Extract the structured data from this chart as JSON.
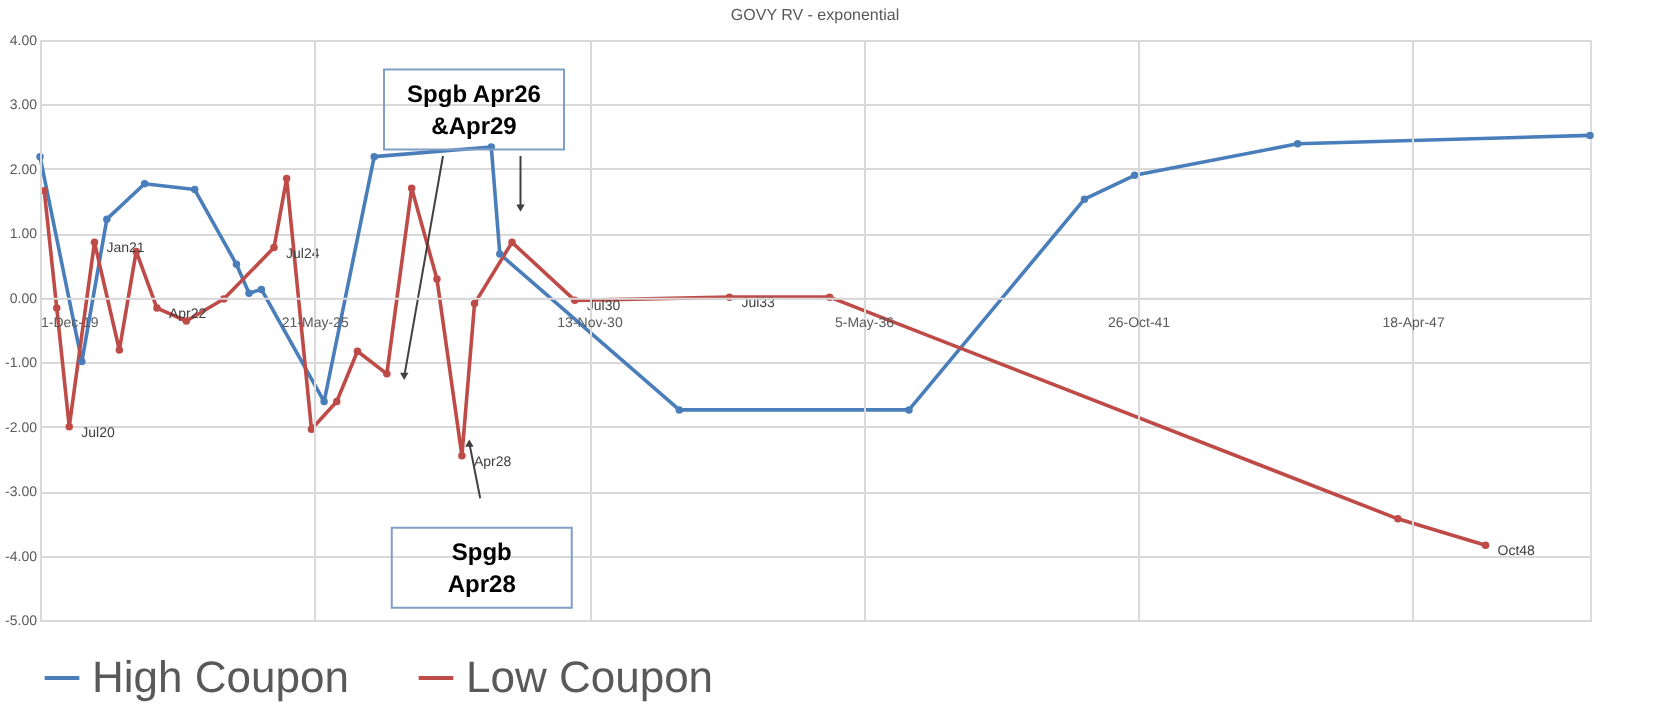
{
  "chart_data": {
    "type": "line",
    "title": "GOVY RV - exponential",
    "series": [
      {
        "name": "High Coupon",
        "color": "#4a7ebb",
        "x": [
          "2019-12",
          "2020-10",
          "2021-04",
          "2022-01",
          "2023-01",
          "2023-11",
          "2024-02",
          "2024-05",
          "2025-08",
          "2026-08",
          "2028-12",
          "2029-02",
          "2032-09",
          "2037-04",
          "2040-10",
          "2041-10",
          "2045-01",
          "2050-11"
        ],
        "values": [
          2.19,
          -0.99,
          1.22,
          1.77,
          1.68,
          0.52,
          0.07,
          0.13,
          -1.61,
          2.19,
          2.34,
          0.68,
          -1.74,
          -1.74,
          1.53,
          1.9,
          2.39,
          2.52
        ]
      },
      {
        "name": "Low Coupon",
        "color": "#be4b48",
        "x": [
          "2020-01",
          "2020-04",
          "2020-07",
          "2021-01",
          "2021-07",
          "2021-11",
          "2022-04",
          "2022-11",
          "2023-08",
          "2024-08",
          "2024-11",
          "2025-05",
          "2025-11",
          "2026-04",
          "2026-11",
          "2027-05",
          "2027-11",
          "2028-05",
          "2028-08",
          "2029-05",
          "2030-08",
          "2033-09",
          "2035-09",
          "2047-01",
          "2048-10"
        ],
        "values": [
          1.66,
          -0.16,
          -2.0,
          0.86,
          -0.81,
          0.72,
          -0.16,
          -0.36,
          -0.02,
          0.78,
          1.85,
          -2.04,
          -1.61,
          -0.83,
          -1.18,
          1.7,
          0.29,
          -2.45,
          -0.09,
          0.86,
          -0.04,
          0.01,
          0.01,
          -3.43,
          -3.84
        ]
      }
    ],
    "xlim": [
      "2019-12-01",
      "2050-11-01"
    ],
    "xticks": [
      {
        "value": "2019-12-01",
        "label": "1-Dec-19"
      },
      {
        "value": "2025-05-21",
        "label": "21-May-25"
      },
      {
        "value": "2030-11-13",
        "label": "13-Nov-30"
      },
      {
        "value": "2036-05-05",
        "label": "5-May-36"
      },
      {
        "value": "2041-10-26",
        "label": "26-Oct-41"
      },
      {
        "value": "2047-04-18",
        "label": "18-Apr-47"
      }
    ],
    "ylim": [
      -5,
      4
    ],
    "yticks": [
      {
        "value": -5,
        "label": "-5.00"
      },
      {
        "value": -4,
        "label": "-4.00"
      },
      {
        "value": -3,
        "label": "-3.00"
      },
      {
        "value": -2,
        "label": "-2.00"
      },
      {
        "value": -1,
        "label": "-1.00"
      },
      {
        "value": 0,
        "label": "0.00"
      },
      {
        "value": 1,
        "label": "1.00"
      },
      {
        "value": 2,
        "label": "2.00"
      },
      {
        "value": 3,
        "label": "3.00"
      },
      {
        "value": 4,
        "label": "4.00"
      }
    ],
    "annotations": [
      {
        "text": "Jul20",
        "x": "2020-07",
        "y": -2.0
      },
      {
        "text": "Jan21",
        "x": "2021-01",
        "y": 0.86
      },
      {
        "text": "Apr22",
        "x": "2022-04",
        "y": -0.16
      },
      {
        "text": "Jul24",
        "x": "2024-08",
        "y": 0.78
      },
      {
        "text": "Apr28",
        "x": "2028-05",
        "y": -2.45
      },
      {
        "text": "Jul30",
        "x": "2030-08",
        "y": -0.04
      },
      {
        "text": "Jul33",
        "x": "2033-09",
        "y": 0.01
      },
      {
        "text": "Oct48",
        "x": "2048-10",
        "y": -3.84
      },
      "Spgb Apr26\n&Apr29",
      "Spgb\nApr28"
    ],
    "grid": true,
    "legend": "bottom",
    "marker": "circle",
    "line_style": "solid"
  }
}
